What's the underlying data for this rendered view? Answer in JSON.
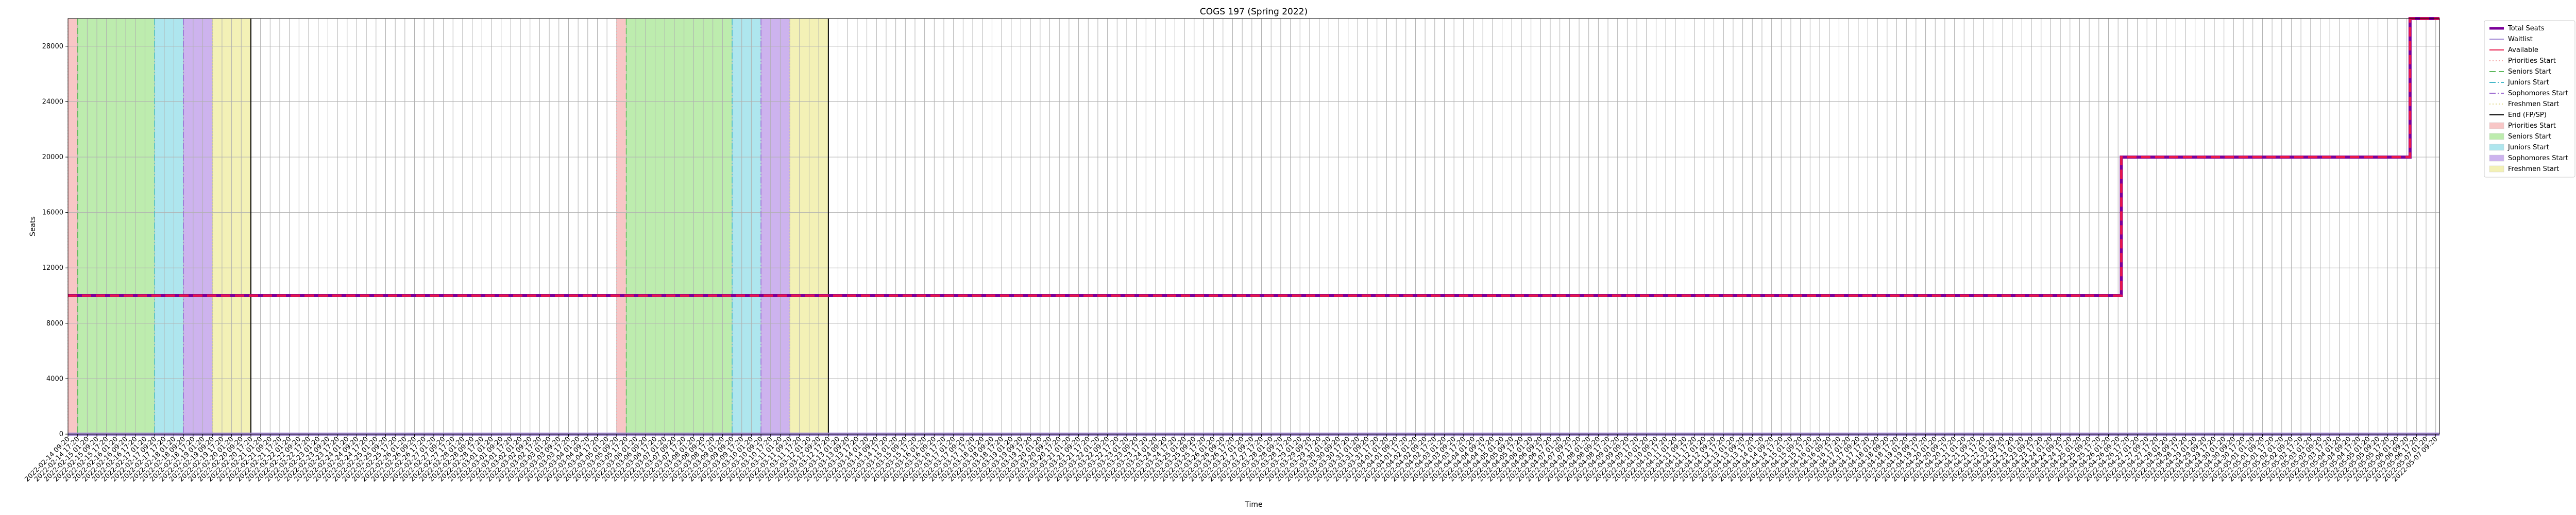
{
  "chart_data": {
    "type": "line",
    "title": "COGS 197 (Spring 2022)",
    "xlabel": "Time",
    "ylabel": "Seats",
    "ylim": [
      0,
      30000
    ],
    "yticks": [
      0,
      4000,
      8000,
      12000,
      16000,
      20000,
      24000,
      28000
    ],
    "grid": true,
    "legend_placement": "outside-top-right",
    "x_start": "2022-02-14 09:20",
    "x_end": "2022-05-07 12:28",
    "x_tick_step_hours": 8,
    "series": [
      {
        "name": "Total Seats",
        "color": "#7b0099",
        "style": "solid",
        "points": [
          [
            "2022-02-14 09:20",
            10000
          ],
          [
            "2022-04-26 12:00",
            10000
          ],
          [
            "2022-04-26 12:00",
            20000
          ],
          [
            "2022-05-06 12:00",
            20000
          ],
          [
            "2022-05-06 12:00",
            30000
          ],
          [
            "2022-05-07 12:28",
            30000
          ]
        ]
      },
      {
        "name": "Waitlist",
        "color": "#a389d4",
        "style": "solid",
        "points": [
          [
            "2022-02-14 09:20",
            0
          ],
          [
            "2022-05-07 12:28",
            0
          ]
        ]
      },
      {
        "name": "Available",
        "color": "#e8174a",
        "style": "dashed",
        "points": [
          [
            "2022-02-14 09:20",
            10000
          ],
          [
            "2022-04-26 12:00",
            10000
          ],
          [
            "2022-04-26 12:00",
            20000
          ],
          [
            "2022-05-06 12:00",
            20000
          ],
          [
            "2022-05-06 12:00",
            30000
          ],
          [
            "2022-05-07 12:28",
            30000
          ]
        ]
      }
    ],
    "vertical_lines": [
      {
        "name": "Priorities Start",
        "color": "#f4a6a6",
        "style": "dotted",
        "x": [
          "2022-02-14 09:20",
          "2022-03-05 09:20"
        ]
      },
      {
        "name": "Seniors Start",
        "color": "#5cb85c",
        "style": "dashed",
        "x": [
          "2022-02-14 17:20",
          "2022-03-05 17:20"
        ]
      },
      {
        "name": "Juniors Start",
        "color": "#45b8c9",
        "style": "dashdot",
        "x": [
          "2022-02-17 09:20",
          "2022-03-09 09:20"
        ]
      },
      {
        "name": "Sophomores Start",
        "color": "#9c6ad1",
        "style": "dashdot",
        "x": [
          "2022-02-18 09:20",
          "2022-03-10 09:20"
        ]
      },
      {
        "name": "Freshmen Start",
        "color": "#e0d88a",
        "style": "dotted",
        "x": [
          "2022-02-19 09:20",
          "2022-03-11 09:20"
        ]
      },
      {
        "name": "End (FP/SP)",
        "color": "#000000",
        "style": "solid",
        "x": [
          "2022-02-20 17:20",
          "2022-03-12 17:20"
        ]
      }
    ],
    "phases": [
      {
        "name": "Priorities Start",
        "color": "#f8c6c6",
        "spans": [
          [
            "2022-02-14 09:20",
            "2022-02-14 17:20"
          ],
          [
            "2022-03-05 09:20",
            "2022-03-05 17:20"
          ]
        ]
      },
      {
        "name": "Seniors Start",
        "color": "#bdecae",
        "spans": [
          [
            "2022-02-14 17:20",
            "2022-02-17 09:20"
          ],
          [
            "2022-03-05 17:20",
            "2022-03-09 09:20"
          ]
        ]
      },
      {
        "name": "Juniors Start",
        "color": "#aee6ee",
        "spans": [
          [
            "2022-02-17 09:20",
            "2022-02-18 09:20"
          ],
          [
            "2022-03-09 09:20",
            "2022-03-10 09:20"
          ]
        ]
      },
      {
        "name": "Sophomores Start",
        "color": "#cdb3ee",
        "spans": [
          [
            "2022-02-18 09:20",
            "2022-02-19 09:20"
          ],
          [
            "2022-03-10 09:20",
            "2022-03-11 09:20"
          ]
        ]
      },
      {
        "name": "Freshmen Start",
        "color": "#f3f1b6",
        "spans": [
          [
            "2022-02-19 09:20",
            "2022-02-20 17:20"
          ],
          [
            "2022-03-11 09:20",
            "2022-03-12 17:20"
          ]
        ]
      }
    ],
    "legend": [
      {
        "label": "Total Seats",
        "kind": "line",
        "color": "#7b0099",
        "style": "solid"
      },
      {
        "label": "Waitlist",
        "kind": "line",
        "color": "#a389d4",
        "style": "solid"
      },
      {
        "label": "Available",
        "kind": "line",
        "color": "#e8174a",
        "style": "solid"
      },
      {
        "label": "Priorities Start",
        "kind": "line",
        "color": "#f4a6a6",
        "style": "dotted"
      },
      {
        "label": "Seniors Start",
        "kind": "line",
        "color": "#5cb85c",
        "style": "dashed"
      },
      {
        "label": "Juniors Start",
        "kind": "line",
        "color": "#45b8c9",
        "style": "dashdot"
      },
      {
        "label": "Sophomores Start",
        "kind": "line",
        "color": "#9c6ad1",
        "style": "dashdot"
      },
      {
        "label": "Freshmen Start",
        "kind": "line",
        "color": "#e0d88a",
        "style": "dotted"
      },
      {
        "label": "End (FP/SP)",
        "kind": "line",
        "color": "#000000",
        "style": "solid"
      },
      {
        "label": "Priorities Start",
        "kind": "patch",
        "color": "#f8c6c6"
      },
      {
        "label": "Seniors Start",
        "kind": "patch",
        "color": "#bdecae"
      },
      {
        "label": "Juniors Start",
        "kind": "patch",
        "color": "#aee6ee"
      },
      {
        "label": "Sophomores Start",
        "kind": "patch",
        "color": "#cdb3ee"
      },
      {
        "label": "Freshmen Start",
        "kind": "patch",
        "color": "#f3f1b6"
      }
    ]
  }
}
